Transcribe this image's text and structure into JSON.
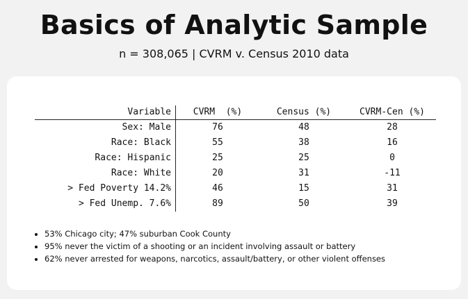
{
  "title": "Basics of Analytic Sample",
  "subtitle": "n = 308,065 | CVRM v. Census 2010 data",
  "table": {
    "headers": [
      "Variable",
      "CVRM  (%)",
      "Census (%)",
      "CVRM-Cen (%)"
    ],
    "rows": [
      [
        "Sex: Male",
        "76",
        "48",
        "28"
      ],
      [
        "Race: Black",
        "55",
        "38",
        "16"
      ],
      [
        "Race: Hispanic",
        "25",
        "25",
        "0"
      ],
      [
        "Race: White",
        "20",
        "31",
        "-11"
      ],
      [
        "> Fed Poverty 14.2%",
        "46",
        "15",
        "31"
      ],
      [
        "> Fed Unemp. 7.6%",
        "89",
        "50",
        "39"
      ]
    ]
  },
  "bullets": [
    "53% Chicago city; 47% suburban Cook County",
    "95% never the victim of a shooting or an incident involving assault or battery",
    "62% never arrested for weapons, narcotics, assault/battery, or other violent offenses"
  ]
}
